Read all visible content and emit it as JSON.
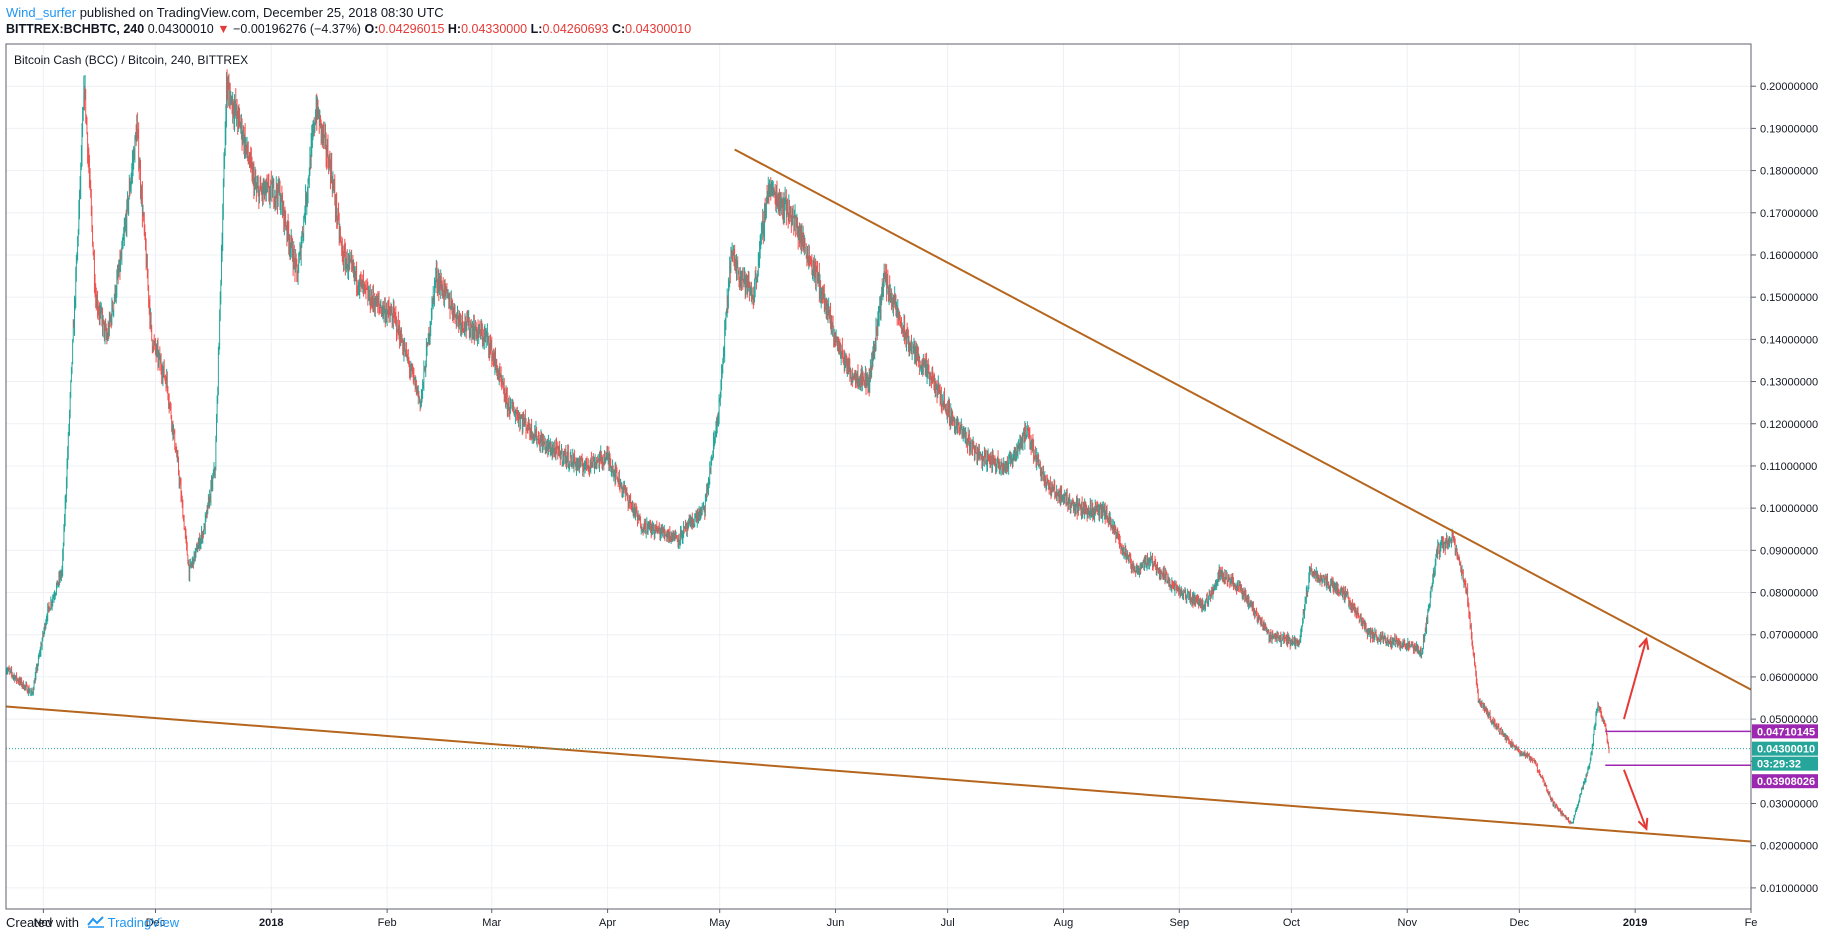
{
  "header": {
    "author": "Wind_surfer",
    "published_text": "published on TradingView.com, December 25, 2018 08:30 UTC",
    "symbol": "BITTREX:BCHBTC, 240",
    "last_price": "0.04300010",
    "change_arrow": "▼",
    "change": "−0.00196276 (−4.37%)",
    "o_label": "O:",
    "o_value": "0.04296015",
    "h_label": "H:",
    "h_value": "0.04330000",
    "l_label": "L:",
    "l_value": "0.04260693",
    "c_label": "C:",
    "c_value": "0.04300010"
  },
  "footer": {
    "created_with": "Created with",
    "brand": "TradingView"
  },
  "chart_data": {
    "type": "candlestick",
    "title": "Bitcoin Cash (BCC) / Bitcoin, 240, BITTREX",
    "x_tick_labels": [
      "Nov",
      "Dec",
      "2018",
      "Feb",
      "Mar",
      "Apr",
      "May",
      "Jun",
      "Jul",
      "Aug",
      "Sep",
      "Oct",
      "Nov",
      "Dec",
      "2019",
      "Fe"
    ],
    "x_range": [
      "2017-10-22",
      "2019-02-01"
    ],
    "ylim": [
      0.005,
      0.21
    ],
    "y_tick_labels": [
      "0.20000000",
      "0.19000000",
      "0.18000000",
      "0.17000000",
      "0.16000000",
      "0.15000000",
      "0.14000000",
      "0.13000000",
      "0.12000000",
      "0.11000000",
      "0.10000000",
      "0.09000000",
      "0.08000000",
      "0.07000000",
      "0.06000000",
      "0.05000000",
      "0.04000000",
      "0.03000000",
      "0.02000000",
      "0.01000000"
    ],
    "grid": true,
    "up_color": "#26a69a",
    "down_color": "#ef5350",
    "price_path": [
      [
        "2017-10-22",
        0.062
      ],
      [
        "2017-10-29",
        0.056
      ],
      [
        "2017-11-02",
        0.075
      ],
      [
        "2017-11-06",
        0.085
      ],
      [
        "2017-11-10",
        0.16
      ],
      [
        "2017-11-12",
        0.2
      ],
      [
        "2017-11-15",
        0.15
      ],
      [
        "2017-11-18",
        0.14
      ],
      [
        "2017-11-22",
        0.16
      ],
      [
        "2017-11-26",
        0.19
      ],
      [
        "2017-11-30",
        0.14
      ],
      [
        "2017-12-04",
        0.13
      ],
      [
        "2017-12-07",
        0.11
      ],
      [
        "2017-12-10",
        0.085
      ],
      [
        "2017-12-14",
        0.095
      ],
      [
        "2017-12-17",
        0.11
      ],
      [
        "2017-12-20",
        0.2
      ],
      [
        "2017-12-24",
        0.19
      ],
      [
        "2017-12-28",
        0.175
      ],
      [
        "2018-01-03",
        0.175
      ],
      [
        "2018-01-08",
        0.155
      ],
      [
        "2018-01-13",
        0.195
      ],
      [
        "2018-01-17",
        0.18
      ],
      [
        "2018-01-20",
        0.16
      ],
      [
        "2018-01-27",
        0.15
      ],
      [
        "2018-02-03",
        0.145
      ],
      [
        "2018-02-10",
        0.125
      ],
      [
        "2018-02-14",
        0.155
      ],
      [
        "2018-02-20",
        0.145
      ],
      [
        "2018-02-28",
        0.14
      ],
      [
        "2018-03-05",
        0.125
      ],
      [
        "2018-03-15",
        0.115
      ],
      [
        "2018-03-25",
        0.11
      ],
      [
        "2018-04-01",
        0.112
      ],
      [
        "2018-04-10",
        0.096
      ],
      [
        "2018-04-20",
        0.093
      ],
      [
        "2018-04-27",
        0.1
      ],
      [
        "2018-05-01",
        0.125
      ],
      [
        "2018-05-04",
        0.16
      ],
      [
        "2018-05-07",
        0.155
      ],
      [
        "2018-05-10",
        0.15
      ],
      [
        "2018-05-14",
        0.176
      ],
      [
        "2018-05-20",
        0.17
      ],
      [
        "2018-05-27",
        0.155
      ],
      [
        "2018-06-01",
        0.14
      ],
      [
        "2018-06-05",
        0.132
      ],
      [
        "2018-06-10",
        0.13
      ],
      [
        "2018-06-14",
        0.155
      ],
      [
        "2018-06-20",
        0.14
      ],
      [
        "2018-06-27",
        0.13
      ],
      [
        "2018-07-03",
        0.12
      ],
      [
        "2018-07-10",
        0.112
      ],
      [
        "2018-07-17",
        0.11
      ],
      [
        "2018-07-22",
        0.118
      ],
      [
        "2018-07-28",
        0.105
      ],
      [
        "2018-08-05",
        0.1
      ],
      [
        "2018-08-12",
        0.099
      ],
      [
        "2018-08-20",
        0.085
      ],
      [
        "2018-08-24",
        0.088
      ],
      [
        "2018-09-01",
        0.08
      ],
      [
        "2018-09-08",
        0.077
      ],
      [
        "2018-09-12",
        0.085
      ],
      [
        "2018-09-18",
        0.08
      ],
      [
        "2018-09-25",
        0.07
      ],
      [
        "2018-10-03",
        0.068
      ],
      [
        "2018-10-06",
        0.085
      ],
      [
        "2018-10-15",
        0.08
      ],
      [
        "2018-10-22",
        0.07
      ],
      [
        "2018-10-30",
        0.068
      ],
      [
        "2018-11-05",
        0.066
      ],
      [
        "2018-11-09",
        0.09
      ],
      [
        "2018-11-13",
        0.093
      ],
      [
        "2018-11-17",
        0.08
      ],
      [
        "2018-11-20",
        0.055
      ],
      [
        "2018-11-25",
        0.048
      ],
      [
        "2018-11-30",
        0.043
      ],
      [
        "2018-12-05",
        0.04
      ],
      [
        "2018-12-10",
        0.03
      ],
      [
        "2018-12-15",
        0.025
      ],
      [
        "2018-12-20",
        0.04
      ],
      [
        "2018-12-22",
        0.054
      ],
      [
        "2018-12-24",
        0.048
      ],
      [
        "2018-12-25",
        0.043
      ]
    ],
    "trendlines": [
      {
        "name": "resistance",
        "color": "#b5651d",
        "points": [
          [
            "2018-05-05",
            0.185
          ],
          [
            "2019-02-01",
            0.057
          ]
        ]
      },
      {
        "name": "support",
        "color": "#b5651d",
        "points": [
          [
            "2017-10-22",
            0.053
          ],
          [
            "2019-02-01",
            0.021
          ]
        ]
      }
    ],
    "horizontal_levels": [
      {
        "value": 0.04710145,
        "label": "0.04710145",
        "color": "#9c27b0"
      },
      {
        "value": 0.03908026,
        "label": "0.03908026",
        "color": "#9c27b0"
      }
    ],
    "last_price_line": {
      "value": 0.0430001,
      "label": "0.04300010",
      "countdown": "03:29:32",
      "color": "#26a69a"
    },
    "arrows": [
      {
        "color": "#e53935",
        "from": [
          "2018-12-29",
          0.05
        ],
        "to": [
          "2019-01-04",
          0.069
        ]
      },
      {
        "color": "#e53935",
        "from": [
          "2018-12-29",
          0.038
        ],
        "to": [
          "2019-01-04",
          0.024
        ]
      }
    ]
  }
}
